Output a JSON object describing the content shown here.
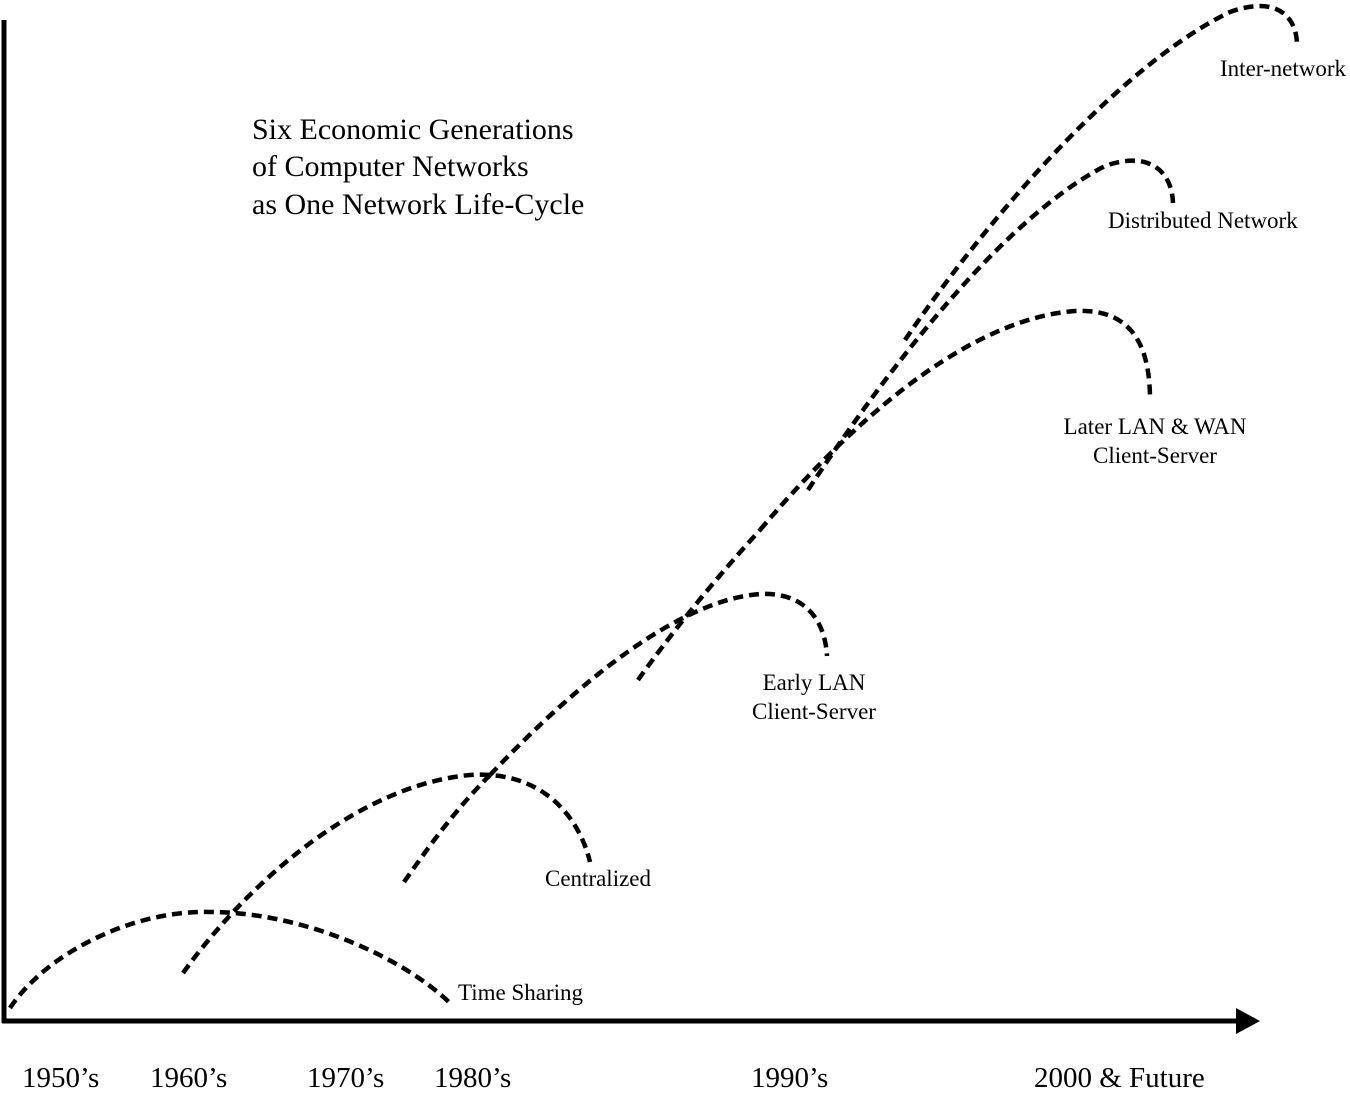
{
  "title": {
    "lines": [
      "Six Economic Generations",
      "of Computer Networks",
      "as One Network Life-Cycle"
    ]
  },
  "eras": [
    "1950’s",
    "1960’s",
    "1970’s",
    "1980’s",
    "1990’s",
    "2000 & Future"
  ],
  "generations": [
    {
      "label": [
        "Time Sharing"
      ]
    },
    {
      "label": [
        "Centralized"
      ]
    },
    {
      "label": [
        "Early LAN",
        "Client-Server"
      ]
    },
    {
      "label": [
        "Later LAN & WAN",
        "Client-Server"
      ]
    },
    {
      "label": [
        "Distributed Network"
      ]
    },
    {
      "label": [
        "Inter-network"
      ]
    }
  ],
  "colors": {
    "ink": "#000000",
    "background": "#ffffff"
  }
}
